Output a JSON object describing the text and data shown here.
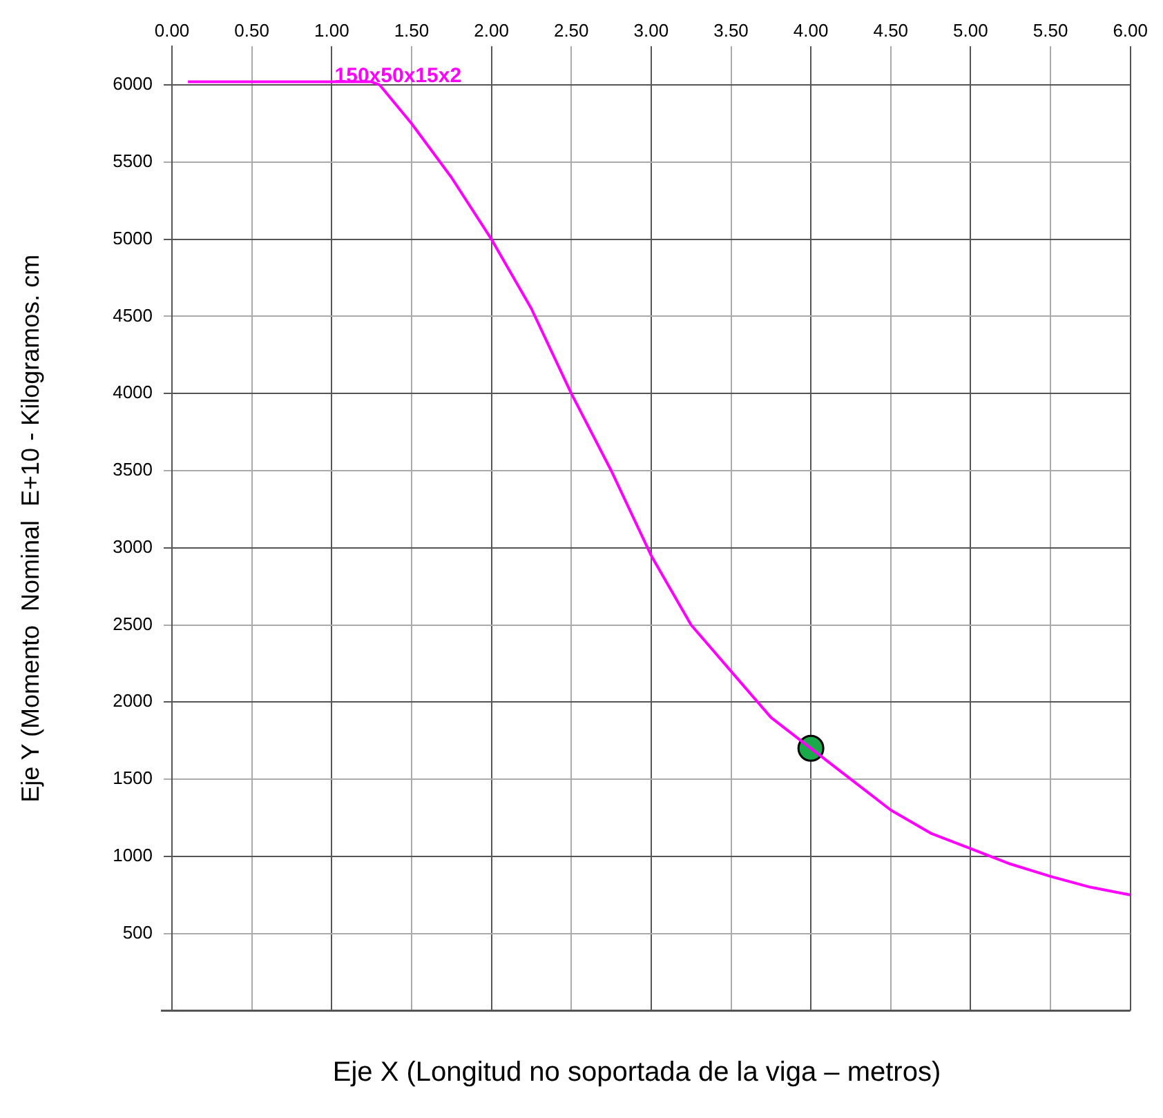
{
  "chart_data": {
    "type": "line",
    "xlabel": "Eje X (Longitud no soportada de la viga – metros)",
    "ylabel": "Eje Y (Momento  Nominal  E+10 - Kilogramos. cm",
    "xlim": [
      0,
      6
    ],
    "xticks": [
      {
        "value": 0,
        "label": "0.00"
      },
      {
        "value": 0.5,
        "label": "0.50"
      },
      {
        "value": 1,
        "label": "1.00"
      },
      {
        "value": 1.5,
        "label": "1.50"
      },
      {
        "value": 2,
        "label": "2.00"
      },
      {
        "value": 2.5,
        "label": "2.50"
      },
      {
        "value": 3,
        "label": "3.00"
      },
      {
        "value": 3.5,
        "label": "3.50"
      },
      {
        "value": 4,
        "label": "4.00"
      },
      {
        "value": 4.5,
        "label": "4.50"
      },
      {
        "value": 5,
        "label": "5.00"
      },
      {
        "value": 5.5,
        "label": "5.50"
      },
      {
        "value": 6,
        "label": "6.00"
      }
    ],
    "ylim": [
      0,
      6250
    ],
    "yticks": [
      500,
      1000,
      1500,
      2000,
      2500,
      3000,
      3500,
      4000,
      4500,
      5000,
      5500,
      6000
    ],
    "grid": true,
    "legend": false,
    "series": [
      {
        "color": "#ff00ff",
        "marker": "none",
        "x": [
          0.1,
          0.5,
          1.0,
          1.25,
          1.3,
          1.5,
          1.75,
          2.0,
          2.25,
          2.5,
          2.75,
          3.0,
          3.25,
          3.5,
          3.75,
          4.0,
          4.25,
          4.5,
          4.75,
          5.0,
          5.25,
          5.5,
          5.75,
          6.0
        ],
        "values": [
          6020,
          6020,
          6020,
          6020,
          6000,
          5750,
          5400,
          5000,
          4550,
          4000,
          3500,
          2950,
          2500,
          2200,
          1900,
          1700,
          1500,
          1300,
          1150,
          1050,
          950,
          870,
          800,
          750
        ]
      },
      {
        "type": "scatter",
        "color": "#1aaa4a",
        "marker": "circle",
        "x": [
          4.0
        ],
        "values": [
          1700
        ]
      }
    ],
    "annotations": [
      {
        "text": "150x50x15x2",
        "x": 1.0,
        "y": 6060
      }
    ]
  }
}
